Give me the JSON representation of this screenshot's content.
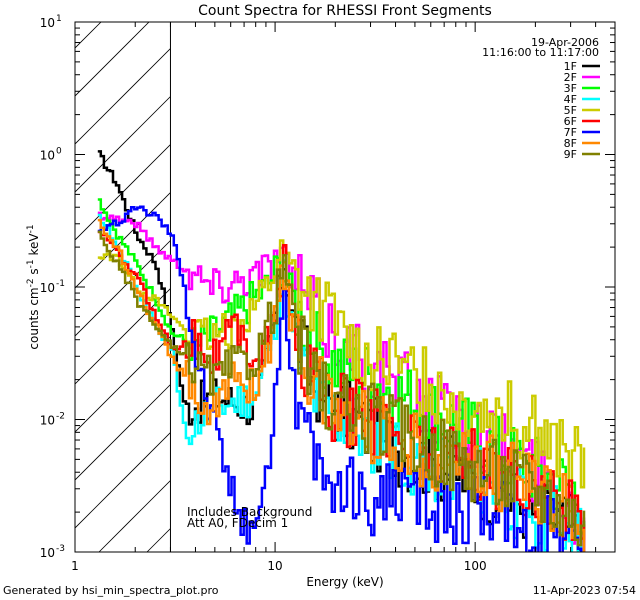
{
  "chart_data": {
    "type": "line",
    "title": "Count Spectra for RHESSI Front Segments",
    "xlabel": "Energy (keV)",
    "ylabel": "counts cm-2 s-1 keV-1",
    "xscale": "log",
    "yscale": "log",
    "xlim": [
      1,
      500
    ],
    "ylim": [
      0.001,
      10
    ],
    "x_tick_labels": [
      {
        "value": 1,
        "label": "1"
      },
      {
        "value": 10,
        "label": "10"
      },
      {
        "value": 100,
        "label": "100"
      }
    ],
    "y_tick_labels": [
      {
        "value": 10,
        "label": "10",
        "exp": "1"
      },
      {
        "value": 1,
        "label": "10",
        "exp": "0"
      },
      {
        "value": 0.1,
        "label": "10",
        "exp": "-1"
      },
      {
        "value": 0.01,
        "label": "10",
        "exp": "-2"
      },
      {
        "value": 0.001,
        "label": "10",
        "exp": "-3"
      }
    ],
    "shaded_region_max_kev": 3,
    "date": "19-Apr-2006",
    "time_range": "11:16:00 to 11:17:00",
    "annotation_line1": "Includes Background",
    "annotation_line2": "Att A0, FDecim 1",
    "series": [
      {
        "name": "1F",
        "color": "#000000",
        "points": [
          [
            1.3,
            1.0
          ],
          [
            1.6,
            0.6
          ],
          [
            2.0,
            0.25
          ],
          [
            2.5,
            0.15
          ],
          [
            3.0,
            0.05
          ],
          [
            3.5,
            0.012
          ],
          [
            5,
            0.015
          ],
          [
            8,
            0.012
          ],
          [
            10,
            0.07
          ],
          [
            11,
            0.16
          ],
          [
            12,
            0.06
          ],
          [
            15,
            0.02
          ],
          [
            20,
            0.012
          ],
          [
            30,
            0.008
          ],
          [
            50,
            0.005
          ],
          [
            80,
            0.004
          ],
          [
            120,
            0.003
          ],
          [
            200,
            0.002
          ],
          [
            300,
            0.0015
          ],
          [
            350,
            0.001
          ]
        ]
      },
      {
        "name": "2F",
        "color": "#ff00ff",
        "points": [
          [
            1.3,
            0.35
          ],
          [
            1.6,
            0.33
          ],
          [
            2.0,
            0.3
          ],
          [
            2.5,
            0.2
          ],
          [
            3.0,
            0.16
          ],
          [
            4,
            0.12
          ],
          [
            5,
            0.1
          ],
          [
            7,
            0.12
          ],
          [
            9,
            0.14
          ],
          [
            10.5,
            0.18
          ],
          [
            12,
            0.12
          ],
          [
            15,
            0.07
          ],
          [
            20,
            0.04
          ],
          [
            30,
            0.025
          ],
          [
            50,
            0.015
          ],
          [
            80,
            0.01
          ],
          [
            120,
            0.007
          ],
          [
            200,
            0.004
          ],
          [
            300,
            0.002
          ],
          [
            350,
            0.0015
          ]
        ]
      },
      {
        "name": "3F",
        "color": "#00ff00",
        "points": [
          [
            1.3,
            0.45
          ],
          [
            1.6,
            0.25
          ],
          [
            2.0,
            0.15
          ],
          [
            2.5,
            0.08
          ],
          [
            3.0,
            0.045
          ],
          [
            4,
            0.035
          ],
          [
            5,
            0.045
          ],
          [
            7,
            0.07
          ],
          [
            9,
            0.1
          ],
          [
            10.5,
            0.15
          ],
          [
            12,
            0.08
          ],
          [
            15,
            0.04
          ],
          [
            20,
            0.025
          ],
          [
            30,
            0.02
          ],
          [
            50,
            0.013
          ],
          [
            80,
            0.009
          ],
          [
            120,
            0.006
          ],
          [
            200,
            0.004
          ],
          [
            300,
            0.003
          ],
          [
            350,
            0.002
          ]
        ]
      },
      {
        "name": "4F",
        "color": "#00ffff",
        "points": [
          [
            1.3,
            0.35
          ],
          [
            1.6,
            0.2
          ],
          [
            2.0,
            0.1
          ],
          [
            2.5,
            0.05
          ],
          [
            3.0,
            0.035
          ],
          [
            3.5,
            0.008
          ],
          [
            5,
            0.012
          ],
          [
            8,
            0.015
          ],
          [
            10,
            0.06
          ],
          [
            11,
            0.12
          ],
          [
            12,
            0.04
          ],
          [
            15,
            0.015
          ],
          [
            20,
            0.01
          ],
          [
            30,
            0.007
          ],
          [
            50,
            0.005
          ],
          [
            80,
            0.004
          ],
          [
            120,
            0.003
          ],
          [
            200,
            0.002
          ],
          [
            300,
            0.0015
          ],
          [
            350,
            0.001
          ]
        ]
      },
      {
        "name": "5F",
        "color": "#cccc00",
        "points": [
          [
            1.3,
            0.17
          ],
          [
            1.6,
            0.17
          ],
          [
            2.0,
            0.1
          ],
          [
            2.5,
            0.08
          ],
          [
            3.0,
            0.06
          ],
          [
            4,
            0.04
          ],
          [
            5,
            0.04
          ],
          [
            7,
            0.06
          ],
          [
            9,
            0.1
          ],
          [
            10.5,
            0.18
          ],
          [
            12,
            0.13
          ],
          [
            15,
            0.08
          ],
          [
            20,
            0.05
          ],
          [
            30,
            0.03
          ],
          [
            50,
            0.02
          ],
          [
            80,
            0.015
          ],
          [
            120,
            0.012
          ],
          [
            200,
            0.008
          ],
          [
            300,
            0.005
          ],
          [
            350,
            0.004
          ]
        ]
      },
      {
        "name": "6F",
        "color": "#ff0000",
        "points": [
          [
            1.3,
            0.27
          ],
          [
            1.6,
            0.18
          ],
          [
            2.0,
            0.12
          ],
          [
            2.5,
            0.06
          ],
          [
            3.0,
            0.035
          ],
          [
            4,
            0.04
          ],
          [
            5,
            0.03
          ],
          [
            6,
            0.05
          ],
          [
            8,
            0.03
          ],
          [
            10,
            0.06
          ],
          [
            11,
            0.15
          ],
          [
            12,
            0.05
          ],
          [
            15,
            0.02
          ],
          [
            20,
            0.012
          ],
          [
            30,
            0.01
          ],
          [
            50,
            0.007
          ],
          [
            80,
            0.005
          ],
          [
            120,
            0.004
          ],
          [
            200,
            0.003
          ],
          [
            300,
            0.002
          ],
          [
            350,
            0.0015
          ]
        ]
      },
      {
        "name": "7F",
        "color": "#0000ff",
        "points": [
          [
            1.3,
            0.28
          ],
          [
            1.6,
            0.3
          ],
          [
            2.0,
            0.4
          ],
          [
            2.5,
            0.35
          ],
          [
            3.0,
            0.25
          ],
          [
            3.5,
            0.1
          ],
          [
            4,
            0.03
          ],
          [
            5,
            0.008
          ],
          [
            6,
            0.003
          ],
          [
            7,
            0.0015
          ],
          [
            8,
            0.002
          ],
          [
            9,
            0.004
          ],
          [
            10,
            0.02
          ],
          [
            11,
            0.1
          ],
          [
            12,
            0.02
          ],
          [
            15,
            0.005
          ],
          [
            20,
            0.003
          ],
          [
            30,
            0.0025
          ],
          [
            50,
            0.0025
          ],
          [
            80,
            0.002
          ],
          [
            120,
            0.002
          ],
          [
            200,
            0.0015
          ],
          [
            300,
            0.0012
          ],
          [
            350,
            0.001
          ]
        ]
      },
      {
        "name": "8F",
        "color": "#ff8800",
        "points": [
          [
            1.3,
            0.3
          ],
          [
            1.6,
            0.2
          ],
          [
            2.0,
            0.1
          ],
          [
            2.5,
            0.05
          ],
          [
            3.0,
            0.03
          ],
          [
            4,
            0.015
          ],
          [
            5,
            0.012
          ],
          [
            6,
            0.02
          ],
          [
            8,
            0.018
          ],
          [
            10,
            0.06
          ],
          [
            11,
            0.14
          ],
          [
            12,
            0.05
          ],
          [
            15,
            0.02
          ],
          [
            20,
            0.012
          ],
          [
            30,
            0.009
          ],
          [
            50,
            0.006
          ],
          [
            80,
            0.005
          ],
          [
            120,
            0.004
          ],
          [
            200,
            0.003
          ],
          [
            300,
            0.002
          ],
          [
            350,
            0.0015
          ]
        ]
      },
      {
        "name": "9F",
        "color": "#808000",
        "points": [
          [
            1.3,
            0.25
          ],
          [
            1.6,
            0.15
          ],
          [
            2.0,
            0.08
          ],
          [
            2.5,
            0.05
          ],
          [
            3.0,
            0.035
          ],
          [
            4,
            0.025
          ],
          [
            5,
            0.02
          ],
          [
            6,
            0.025
          ],
          [
            8,
            0.03
          ],
          [
            10,
            0.08
          ],
          [
            11,
            0.17
          ],
          [
            12,
            0.06
          ],
          [
            15,
            0.02
          ],
          [
            20,
            0.012
          ],
          [
            30,
            0.01
          ],
          [
            50,
            0.007
          ],
          [
            80,
            0.005
          ],
          [
            120,
            0.004
          ],
          [
            200,
            0.003
          ],
          [
            300,
            0.002
          ],
          [
            350,
            0.0015
          ]
        ]
      }
    ]
  },
  "footer": {
    "generated_by": "Generated by hsi_min_spectra_plot.pro",
    "timestamp": "11-Apr-2023 07:54"
  }
}
